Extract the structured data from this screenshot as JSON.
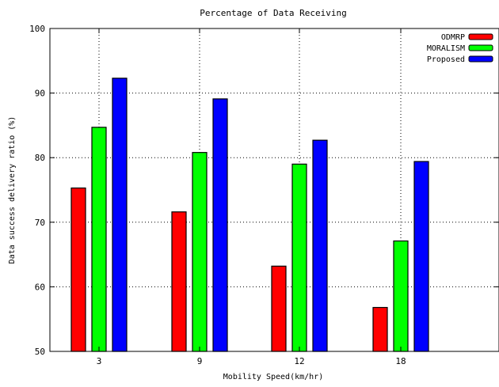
{
  "chart_data": {
    "type": "bar",
    "title": "Percentage of Data Receiving",
    "xlabel": "Mobility Speed(km/hr)",
    "ylabel": "Data success delivery ratio (%)",
    "categories": [
      "3",
      "9",
      "12",
      "18"
    ],
    "ylim": [
      50,
      100
    ],
    "yticks": [
      "50",
      "60",
      "70",
      "80",
      "90",
      "100"
    ],
    "grid": true,
    "legend_position": "top-right",
    "series": [
      {
        "name": "ODMRP",
        "color": "#ff0000",
        "values": [
          75.3,
          71.6,
          63.2,
          56.8
        ]
      },
      {
        "name": "MORALISM",
        "color": "#00ff00",
        "values": [
          84.7,
          80.8,
          79.0,
          67.1
        ]
      },
      {
        "name": "Proposed",
        "color": "#0000ff",
        "values": [
          92.3,
          89.1,
          82.7,
          79.4
        ]
      }
    ]
  }
}
